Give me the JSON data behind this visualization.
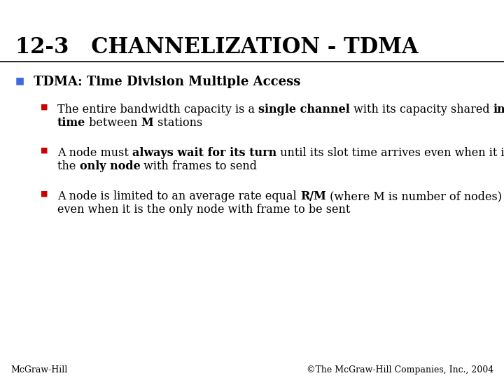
{
  "title": "12-3   CHANNELIZATION - TDMA",
  "title_fontsize": 22,
  "title_color": "#000000",
  "background_color": "#ffffff",
  "bullet1_marker_color": "#4169E1",
  "bullet1_fontsize": 13,
  "sub_bullet_marker_color": "#CC0000",
  "sub_bullet_fontsize": 11.5,
  "footer_left": "McGraw-Hill",
  "footer_right": "©The McGraw-Hill Companies, Inc., 2004",
  "footer_fontsize": 9
}
